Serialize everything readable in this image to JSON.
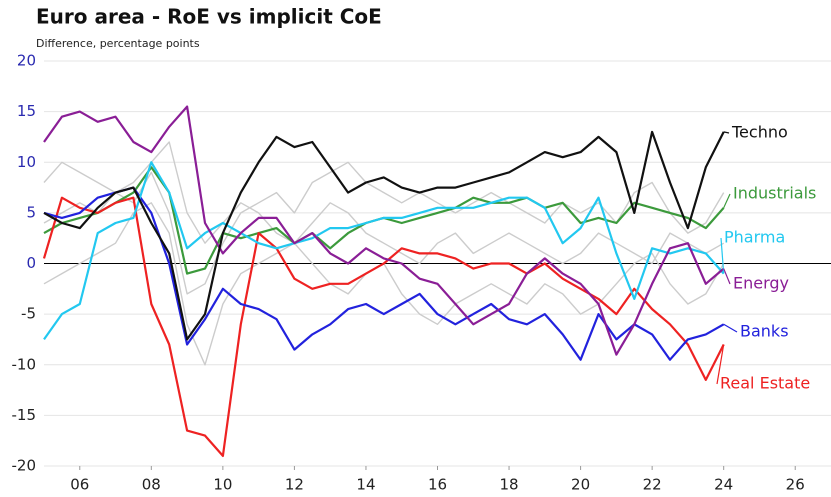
{
  "chart_data": {
    "type": "line",
    "title": "Euro area - RoE vs implicit CoE",
    "subtitle": "Difference, percentage points",
    "x": [
      2005,
      2005.5,
      2006,
      2006.5,
      2007,
      2007.5,
      2008,
      2008.5,
      2009,
      2009.5,
      2010,
      2010.5,
      2011,
      2011.5,
      2012,
      2012.5,
      2013,
      2013.5,
      2014,
      2014.5,
      2015,
      2015.5,
      2016,
      2016.5,
      2017,
      2017.5,
      2018,
      2018.5,
      2019,
      2019.5,
      2020,
      2020.5,
      2021,
      2021.5,
      2022,
      2022.5,
      2023,
      2023.5,
      2024
    ],
    "series": [
      {
        "color": "#cccccc",
        "values": [
          8,
          10,
          9,
          8,
          7,
          6,
          9,
          5,
          -3,
          -2,
          2,
          5,
          6,
          7,
          5,
          8,
          9,
          10,
          8,
          7,
          6,
          7,
          6,
          5,
          6,
          7,
          6,
          5,
          4,
          6,
          5,
          6,
          4,
          7,
          8,
          5,
          3,
          4,
          7
        ]
      },
      {
        "color": "#cccccc",
        "values": [
          -2,
          -1,
          0,
          1,
          2,
          5,
          6,
          3,
          -6,
          -10,
          -4,
          -1,
          0,
          1,
          2,
          0,
          -2,
          -3,
          -1,
          0,
          -3,
          -5,
          -6,
          -4,
          -3,
          -2,
          -3,
          -4,
          -2,
          -3,
          -5,
          -4,
          -2,
          0,
          1,
          -2,
          -4,
          -3,
          0
        ]
      },
      {
        "color": "#cccccc",
        "values": [
          4,
          5,
          6,
          5,
          7,
          8,
          10,
          12,
          5,
          2,
          4,
          6,
          5,
          3,
          2,
          4,
          6,
          5,
          3,
          2,
          1,
          0,
          2,
          3,
          1,
          2,
          3,
          2,
          1,
          0,
          1,
          3,
          2,
          1,
          0,
          3,
          2,
          1,
          2
        ]
      },
      {
        "name": "Industrials",
        "color": "#3c9a3c",
        "values": [
          3,
          4,
          4.5,
          5,
          6,
          7,
          9.5,
          7,
          -1,
          -0.5,
          3,
          2.5,
          3,
          3.5,
          2,
          3,
          1.5,
          3,
          4,
          4.5,
          4,
          4.5,
          5,
          5.5,
          6.5,
          6,
          6,
          6.5,
          5.5,
          6,
          4,
          4.5,
          4,
          6,
          5.5,
          5,
          4.5,
          3.5,
          5.5
        ]
      },
      {
        "name": "Real Estate",
        "color": "#ee2222",
        "values": [
          0.5,
          6.5,
          5.5,
          5,
          6,
          6.5,
          -4,
          -8,
          -16.5,
          -17,
          -19,
          -6,
          3,
          1.5,
          -1.5,
          -2.5,
          -2,
          -2,
          -1,
          0,
          1.5,
          1,
          1,
          0.5,
          -0.5,
          0,
          0,
          -1,
          0,
          -1.5,
          -2.5,
          -3.5,
          -5,
          -2.5,
          -4.5,
          -6,
          -8,
          -11.5,
          -8
        ]
      },
      {
        "name": "Banks",
        "color": "#2222dd",
        "values": [
          5,
          4.5,
          5,
          6.5,
          7,
          7.5,
          5,
          0,
          -8,
          -5.5,
          -2.5,
          -4,
          -4.5,
          -5.5,
          -8.5,
          -7,
          -6,
          -4.5,
          -4,
          -5,
          -4,
          -3,
          -5,
          -6,
          -5,
          -4,
          -5.5,
          -6,
          -5,
          -7,
          -9.5,
          -5,
          -7.5,
          -6,
          -7,
          -9.5,
          -7.5,
          -7,
          -6
        ]
      },
      {
        "name": "Pharma",
        "color": "#22c8f0",
        "values": [
          -7.5,
          -5,
          -4,
          3,
          4,
          4.5,
          10,
          7,
          1.5,
          3,
          4,
          3,
          2,
          1.5,
          2,
          2.5,
          3.5,
          3.5,
          4,
          4.5,
          4.5,
          5,
          5.5,
          5.5,
          5.5,
          6,
          6.5,
          6.5,
          5.5,
          2,
          3.5,
          6.5,
          1,
          -3.5,
          1.5,
          1,
          1.5,
          1,
          -1
        ]
      },
      {
        "name": "Energy",
        "color": "#8a1e96",
        "values": [
          12,
          14.5,
          15,
          14,
          14.5,
          12,
          11,
          13.5,
          15.5,
          4,
          1,
          3,
          4.5,
          4.5,
          2,
          3,
          1,
          0,
          1.5,
          0.5,
          0,
          -1.5,
          -2,
          -4,
          -6,
          -5,
          -4,
          -1,
          0.5,
          -1,
          -2,
          -4,
          -9,
          -6,
          -2,
          1.5,
          2,
          -2,
          -0.5
        ]
      },
      {
        "name": "Techno",
        "color": "#111111",
        "values": [
          5,
          4,
          3.5,
          5.5,
          7,
          7.5,
          4,
          1,
          -7.5,
          -5,
          3,
          7,
          10,
          12.5,
          11.5,
          12,
          9.5,
          7,
          8,
          8.5,
          7.5,
          7,
          7.5,
          7.5,
          8,
          8.5,
          9,
          10,
          11,
          10.5,
          11,
          12.5,
          11,
          5,
          13,
          8,
          3.5,
          9.5,
          13
        ]
      }
    ],
    "xlim": [
      2005,
      2027
    ],
    "xticks": [
      {
        "value": 2006,
        "label": "06"
      },
      {
        "value": 2008,
        "label": "08"
      },
      {
        "value": 2010,
        "label": "10"
      },
      {
        "value": 2012,
        "label": "12"
      },
      {
        "value": 2014,
        "label": "14"
      },
      {
        "value": 2016,
        "label": "16"
      },
      {
        "value": 2018,
        "label": "18"
      },
      {
        "value": 2020,
        "label": "20"
      },
      {
        "value": 2022,
        "label": "22"
      },
      {
        "value": 2024,
        "label": "24"
      },
      {
        "value": 2026,
        "label": "26"
      }
    ],
    "ylim": [
      -20,
      20
    ],
    "yticks": [
      -20,
      -15,
      -10,
      -5,
      0,
      5,
      10,
      15,
      20
    ],
    "grid": true
  }
}
